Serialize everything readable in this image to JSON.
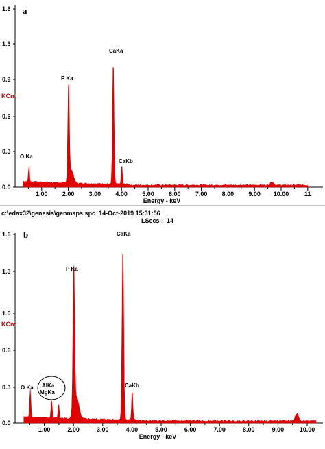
{
  "footer_a": {
    "path_line": "c:\\edax32\\genesis\\genmaps.spc  14-Oct-2019 15:31:56",
    "lsecs_line": "LSecs :  14"
  },
  "colors": {
    "spectrum": "#e00000",
    "axis": "#000000",
    "kcnt": "#e00000"
  },
  "chart_data": [
    {
      "type": "area",
      "panel_label": "a",
      "xlabel": "Energy - keV",
      "ylabel": "KCnt",
      "xlim": [
        0.0,
        11.0
      ],
      "ylim": [
        0.0,
        1.6
      ],
      "x_ticks": [
        "1.00",
        "2.00",
        "3.00",
        "4.00",
        "5.00",
        "6.00",
        "7.00",
        "8.00",
        "9.00",
        "10.00",
        "11"
      ],
      "y_ticks": [
        "0.0",
        "0.3",
        "0.6",
        "0.9",
        "1.3",
        "1.6"
      ],
      "peaks": [
        {
          "label": "O Ka",
          "x": 0.52,
          "y": 0.13
        },
        {
          "label": "P Ka",
          "x": 2.01,
          "y": 0.84
        },
        {
          "label": "CaKa",
          "x": 3.69,
          "y": 1.08
        },
        {
          "label": "CaKb",
          "x": 4.01,
          "y": 0.17
        }
      ]
    },
    {
      "type": "area",
      "panel_label": "b",
      "xlabel": "Energy - keV",
      "ylabel": "KCnt",
      "xlim": [
        0.0,
        10.3
      ],
      "ylim": [
        0.0,
        1.6
      ],
      "x_ticks": [
        "1.00",
        "2.00",
        "3.00",
        "4.00",
        "5.00",
        "6.00",
        "7.00",
        "8.00",
        "9.00",
        "10.00"
      ],
      "y_ticks": [
        "0.0",
        "0.3",
        "0.6",
        "1.0",
        "1.3",
        "1.6"
      ],
      "peaks": [
        {
          "label": "O Ka",
          "x": 0.52,
          "y": 0.23
        },
        {
          "label": "AlKa",
          "x": 1.25,
          "y": 0.16
        },
        {
          "label": "MgKa",
          "x": 1.49,
          "y": 0.12
        },
        {
          "label": "P Ka",
          "x": 2.01,
          "y": 1.25
        },
        {
          "label": "CaKa",
          "x": 3.69,
          "y": 1.48
        },
        {
          "label": "CaKb",
          "x": 4.01,
          "y": 0.25
        }
      ]
    }
  ]
}
